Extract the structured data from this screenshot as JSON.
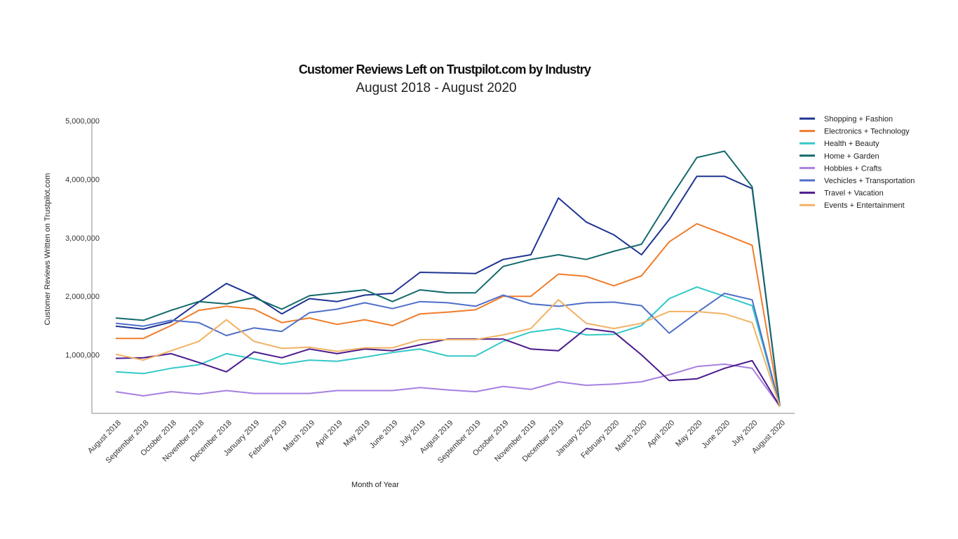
{
  "chart_data": {
    "type": "line",
    "title": "Customer Reviews Left on Trustpilot.com by Industry",
    "subtitle": "August 2018 - August 2020",
    "xlabel": "Month of Year",
    "ylabel": "Customer Reviews Written on Trustpilot.com",
    "ylim": [
      0,
      5000000
    ],
    "yticks": [
      "1,000,000",
      "2,000,000",
      "3,000,000",
      "4,000,000",
      "5,000,000"
    ],
    "ytick_values": [
      1000000,
      2000000,
      3000000,
      4000000,
      5000000
    ],
    "grid": false,
    "legend_position": "right",
    "categories": [
      "August 2018",
      "September 2018",
      "October 2018",
      "November 2018",
      "December 2018",
      "January 2019",
      "February 2019",
      "March 2019",
      "April 2019",
      "May 2019",
      "June 2019",
      "July 2019",
      "August 2019",
      "September 2019",
      "October 2019",
      "November 2019",
      "December 2019",
      "January 2020",
      "February 2020",
      "March 2020",
      "April 2020",
      "May 2020",
      "June 2020",
      "July 2020",
      "August 2020"
    ],
    "series": [
      {
        "name": "Shopping + Fashion",
        "color": "#1f3493",
        "values": [
          1490000,
          1440000,
          1560000,
          1900000,
          2220000,
          2010000,
          1700000,
          1960000,
          1910000,
          2020000,
          2050000,
          2410000,
          2400000,
          2390000,
          2630000,
          2710000,
          3680000,
          3270000,
          3050000,
          2710000,
          3310000,
          4050000,
          4050000,
          3840000,
          120000
        ]
      },
      {
        "name": "Electronics + Technology",
        "color": "#f07c2a",
        "values": [
          1280000,
          1280000,
          1500000,
          1760000,
          1830000,
          1780000,
          1550000,
          1630000,
          1520000,
          1600000,
          1500000,
          1700000,
          1730000,
          1770000,
          2000000,
          2000000,
          2380000,
          2340000,
          2180000,
          2350000,
          2930000,
          3240000,
          3060000,
          2870000,
          120000
        ]
      },
      {
        "name": "Health + Beauty",
        "color": "#34c8c8",
        "values": [
          710000,
          680000,
          770000,
          830000,
          1020000,
          930000,
          840000,
          910000,
          890000,
          960000,
          1040000,
          1100000,
          980000,
          980000,
          1230000,
          1390000,
          1450000,
          1340000,
          1350000,
          1500000,
          1960000,
          2160000,
          2000000,
          1840000,
          120000
        ]
      },
      {
        "name": "Home + Garden",
        "color": "#13696b",
        "values": [
          1630000,
          1590000,
          1760000,
          1910000,
          1870000,
          1980000,
          1780000,
          2010000,
          2060000,
          2110000,
          1910000,
          2110000,
          2060000,
          2060000,
          2510000,
          2630000,
          2710000,
          2630000,
          2770000,
          2890000,
          3650000,
          4370000,
          4480000,
          3870000,
          120000
        ]
      },
      {
        "name": "Hobbies + Crafts",
        "color": "#a77fe0",
        "values": [
          370000,
          300000,
          370000,
          330000,
          390000,
          340000,
          340000,
          340000,
          390000,
          390000,
          390000,
          440000,
          400000,
          370000,
          460000,
          410000,
          540000,
          480000,
          500000,
          540000,
          660000,
          800000,
          840000,
          770000,
          120000
        ]
      },
      {
        "name": "Vechicles + Transportation",
        "color": "#4f6fc9",
        "values": [
          1540000,
          1490000,
          1590000,
          1550000,
          1330000,
          1460000,
          1400000,
          1720000,
          1780000,
          1890000,
          1790000,
          1910000,
          1890000,
          1830000,
          2020000,
          1870000,
          1830000,
          1890000,
          1900000,
          1840000,
          1370000,
          1720000,
          2050000,
          1940000,
          120000
        ]
      },
      {
        "name": "Travel + Vacation",
        "color": "#4b1a8c",
        "values": [
          940000,
          950000,
          1020000,
          870000,
          710000,
          1050000,
          950000,
          1100000,
          1020000,
          1100000,
          1070000,
          1170000,
          1270000,
          1270000,
          1270000,
          1100000,
          1070000,
          1450000,
          1390000,
          1000000,
          560000,
          590000,
          770000,
          900000,
          120000
        ]
      },
      {
        "name": "Events + Entertainment",
        "color": "#f2b264",
        "values": [
          1010000,
          910000,
          1070000,
          1230000,
          1600000,
          1230000,
          1110000,
          1130000,
          1060000,
          1120000,
          1120000,
          1260000,
          1260000,
          1260000,
          1340000,
          1450000,
          1940000,
          1540000,
          1450000,
          1540000,
          1740000,
          1740000,
          1700000,
          1550000,
          120000
        ]
      }
    ]
  }
}
